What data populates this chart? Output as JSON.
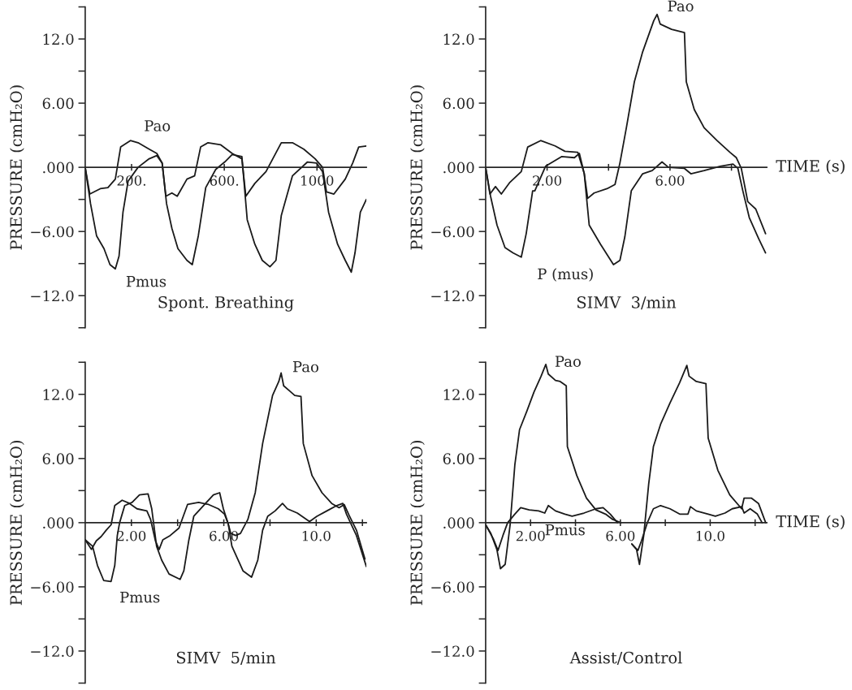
{
  "chart_data": [
    {
      "type": "line",
      "title": "Spont. Breathing",
      "ylabel": "PRESSURE (cmH₂O)",
      "xlim": [
        0,
        1213
      ],
      "ylim": [
        -15,
        15
      ],
      "xticks": [
        {
          "value": 200,
          "label": "200."
        },
        {
          "value": 600,
          "label": "600."
        },
        {
          "value": 1000,
          "label": "1000"
        }
      ],
      "yticks": [
        {
          "value": -15,
          "label": null
        },
        {
          "value": -12,
          "label": "−12.0"
        },
        {
          "value": -9,
          "label": null
        },
        {
          "value": -6,
          "label": "−6.00"
        },
        {
          "value": -3,
          "label": null
        },
        {
          "value": 0,
          "label": ".000"
        },
        {
          "value": 3,
          "label": null
        },
        {
          "value": 6,
          "label": "6.00"
        },
        {
          "value": 9,
          "label": null
        },
        {
          "value": 12,
          "label": "12.0"
        },
        {
          "value": 15,
          "label": null
        }
      ],
      "series": [
        {
          "name": "Pao",
          "color": "#1a1a1a",
          "x": [
            0,
            20,
            65,
            98,
            130,
            153,
            195,
            228,
            276,
            309,
            332,
            348,
            374,
            397,
            439,
            472,
            498,
            530,
            585,
            634,
            676,
            693,
            732,
            780,
            846,
            894,
            943,
            992,
            1024,
            1041,
            1073,
            1122,
            1154,
            1180,
            1213
          ],
          "values": [
            0,
            -2.5,
            -2,
            -1.9,
            -1.1,
            1.9,
            2.5,
            2.3,
            1.7,
            1.3,
            0.4,
            -2.7,
            -2.4,
            -2.7,
            -1.1,
            -0.8,
            1.9,
            2.3,
            2.1,
            1.3,
            0.8,
            -2.7,
            -1.5,
            -0.4,
            2.3,
            2.3,
            1.7,
            0.8,
            0,
            -2.3,
            -2.5,
            -1.1,
            0.4,
            1.9,
            2.0
          ]
        },
        {
          "name": "Pmus",
          "color": "#1a1a1a",
          "x": [
            0,
            23,
            49,
            81,
            107,
            130,
            146,
            163,
            185,
            228,
            276,
            309,
            332,
            351,
            374,
            400,
            439,
            462,
            488,
            520,
            563,
            602,
            634,
            676,
            699,
            732,
            764,
            797,
            823,
            846,
            894,
            959,
            998,
            1024,
            1050,
            1089,
            1122,
            1148,
            1164,
            1187,
            1213
          ],
          "values": [
            0,
            -3.4,
            -6.4,
            -7.6,
            -9.1,
            -9.5,
            -8.3,
            -4.2,
            -1.3,
            0,
            0.8,
            1.1,
            0.4,
            -3.4,
            -5.7,
            -7.6,
            -8.7,
            -9.1,
            -6.4,
            -1.9,
            -0.2,
            0.5,
            1.2,
            1,
            -4.9,
            -7.2,
            -8.7,
            -9.3,
            -8.7,
            -4.5,
            -0.8,
            0.5,
            0.4,
            -0.4,
            -4.2,
            -7.2,
            -8.7,
            -9.8,
            -8.0,
            -4.2,
            -3.0
          ]
        }
      ]
    },
    {
      "type": "line",
      "title": "SIMV  3/min",
      "ylabel": "PRESSURE (cmH₂O)",
      "xlabel": "TIME (s)",
      "xlim": [
        0,
        9.15
      ],
      "ylim": [
        -15,
        15
      ],
      "xticks": [
        {
          "value": 2,
          "label": "2.00"
        },
        {
          "value": 4,
          "label": null
        },
        {
          "value": 6,
          "label": "6.00"
        },
        {
          "value": 8,
          "label": null
        }
      ],
      "yticks": [
        {
          "value": -15,
          "label": null
        },
        {
          "value": -12,
          "label": "−12.0"
        },
        {
          "value": -9,
          "label": null
        },
        {
          "value": -6,
          "label": "−6.00"
        },
        {
          "value": -3,
          "label": null
        },
        {
          "value": 0,
          "label": ".000"
        },
        {
          "value": 3,
          "label": null
        },
        {
          "value": 6,
          "label": "6.00"
        },
        {
          "value": 9,
          "label": null
        },
        {
          "value": 12,
          "label": "12.0"
        },
        {
          "value": 15,
          "label": null
        }
      ],
      "series": [
        {
          "name": "Pao",
          "color": "#1a1a1a",
          "x": [
            0,
            0.14,
            0.32,
            0.51,
            0.79,
            1.16,
            1.37,
            1.79,
            2.26,
            2.58,
            3.0,
            3.21,
            3.32,
            3.53,
            3.95,
            4.21,
            4.37,
            4.58,
            4.84,
            5.11,
            5.47,
            5.58,
            5.68,
            6.05,
            6.47,
            6.53,
            6.79,
            7.11,
            7.53,
            7.95,
            8.16,
            8.32,
            8.53,
            8.79,
            9.11
          ],
          "values": [
            0,
            -2.5,
            -1.8,
            -2.5,
            -1.4,
            -0.4,
            1.9,
            2.5,
            2.0,
            1.5,
            1.4,
            -0.6,
            -2.9,
            -2.4,
            -2.0,
            -1.6,
            0.4,
            3.7,
            8.0,
            10.8,
            13.7,
            14.3,
            13.4,
            12.9,
            12.6,
            8.0,
            5.4,
            3.7,
            2.5,
            1.4,
            0.9,
            -0.1,
            -3.2,
            -3.9,
            -6.2
          ]
        },
        {
          "name": "P (mus)",
          "color": "#1a1a1a",
          "x": [
            0,
            0.16,
            0.37,
            0.63,
            0.89,
            1.16,
            1.32,
            1.53,
            1.6,
            1.95,
            2.47,
            2.89,
            3.05,
            3.21,
            3.37,
            3.74,
            4.16,
            4.37,
            4.53,
            4.74,
            5.11,
            5.42,
            5.74,
            5.95,
            6.47,
            6.68,
            7.11,
            7.63,
            8.05,
            8.21,
            8.37,
            8.58,
            8.89,
            9.11
          ],
          "values": [
            0,
            -2.7,
            -5.4,
            -7.5,
            -8.0,
            -8.4,
            -6.2,
            -2.2,
            -2.2,
            0.1,
            1.0,
            0.9,
            1.3,
            -0.6,
            -5.4,
            -7.2,
            -9.1,
            -8.7,
            -6.5,
            -2.2,
            -0.6,
            -0.3,
            0.5,
            0,
            -0.1,
            -0.6,
            -0.3,
            0.1,
            0.3,
            -0.1,
            -2.2,
            -4.7,
            -6.7,
            -8.0
          ]
        }
      ]
    },
    {
      "type": "line",
      "title": "SIMV  5/min",
      "ylabel": "PRESSURE (cmH₂O)",
      "xlim": [
        0,
        12.17
      ],
      "ylim": [
        -15,
        15
      ],
      "xticks": [
        {
          "value": 2,
          "label": "2.00"
        },
        {
          "value": 4,
          "label": null
        },
        {
          "value": 6,
          "label": "6.00"
        },
        {
          "value": 8,
          "label": null
        },
        {
          "value": 10,
          "label": "10.0"
        },
        {
          "value": 12,
          "label": null
        }
      ],
      "yticks": [
        {
          "value": -15,
          "label": null
        },
        {
          "value": -12,
          "label": "−12.0"
        },
        {
          "value": -9,
          "label": null
        },
        {
          "value": -6,
          "label": "−6.00"
        },
        {
          "value": -3,
          "label": null
        },
        {
          "value": 0,
          "label": ".000"
        },
        {
          "value": 3,
          "label": null
        },
        {
          "value": 6,
          "label": "6.00"
        },
        {
          "value": 9,
          "label": null
        },
        {
          "value": 12,
          "label": "12.0"
        },
        {
          "value": 15,
          "label": null
        }
      ],
      "series": [
        {
          "name": "Pao",
          "color": "#1a1a1a",
          "x": [
            0,
            0.27,
            0.48,
            0.69,
            0.91,
            1.12,
            1.28,
            1.6,
            1.92,
            2.24,
            2.67,
            2.83,
            3.04,
            3.2,
            3.36,
            3.68,
            4.06,
            4.43,
            4.91,
            5.34,
            5.76,
            6.03,
            6.19,
            6.3,
            6.51,
            6.72,
            7.04,
            7.36,
            7.68,
            8.11,
            8.38,
            8.48,
            8.59,
            8.86,
            9.07,
            9.34,
            9.44,
            9.82,
            10.25,
            10.67,
            10.99,
            11.21,
            11.42,
            11.74,
            12.11
          ],
          "values": [
            -1.6,
            -2.5,
            -1.7,
            -1.3,
            -0.7,
            -0.2,
            1.6,
            2.1,
            1.8,
            1.3,
            1.1,
            0.3,
            -1.7,
            -2.5,
            -1.6,
            -1.2,
            -0.5,
            1.7,
            1.9,
            1.7,
            1.3,
            0.8,
            -0.1,
            -1.0,
            -1.2,
            -1.0,
            0.3,
            2.8,
            7.4,
            11.9,
            13.2,
            14.0,
            12.8,
            12.3,
            11.9,
            11.8,
            7.4,
            4.4,
            2.8,
            1.8,
            1.4,
            1.7,
            0.7,
            -0.7,
            -3.4
          ]
        },
        {
          "name": "Pmus",
          "color": "#1a1a1a",
          "x": [
            0,
            0.32,
            0.53,
            0.8,
            1.12,
            1.28,
            1.39,
            1.49,
            1.71,
            2.03,
            2.35,
            2.72,
            2.88,
            3.09,
            3.31,
            3.63,
            4.11,
            4.27,
            4.48,
            4.7,
            5.12,
            5.55,
            5.82,
            5.98,
            6.19,
            6.35,
            6.62,
            6.83,
            7.2,
            7.47,
            7.68,
            7.9,
            8.22,
            8.54,
            8.75,
            9.18,
            9.71,
            10.03,
            10.46,
            10.89,
            11.15,
            11.31,
            11.74,
            12.17
          ],
          "values": [
            -1.6,
            -2.2,
            -4.0,
            -5.4,
            -5.5,
            -4.0,
            -1.2,
            0,
            1.6,
            1.9,
            2.6,
            2.7,
            1.3,
            -2.2,
            -3.5,
            -4.8,
            -5.3,
            -4.5,
            -1.7,
            0.6,
            1.6,
            2.6,
            2.8,
            1.3,
            -0.1,
            -2.2,
            -3.5,
            -4.5,
            -5.1,
            -3.5,
            -0.7,
            0.6,
            1.1,
            1.8,
            1.3,
            0.9,
            0.1,
            0.6,
            1.1,
            1.6,
            1.8,
            0.8,
            -1.2,
            -4.1
          ]
        }
      ]
    },
    {
      "type": "line",
      "title": "Assist/Control",
      "ylabel": "PRESSURE (cmH₂O)",
      "xlabel": "TIME (s)",
      "xlim": [
        0,
        12.52
      ],
      "ylim": [
        -15,
        15
      ],
      "xticks": [
        {
          "value": 2,
          "label": "2.00"
        },
        {
          "value": 4,
          "label": null
        },
        {
          "value": 6,
          "label": "6.00"
        },
        {
          "value": 8,
          "label": null
        },
        {
          "value": 10,
          "label": "10.0"
        },
        {
          "value": 12,
          "label": null
        }
      ],
      "yticks": [
        {
          "value": -15,
          "label": null
        },
        {
          "value": -12,
          "label": "−12.0"
        },
        {
          "value": -9,
          "label": null
        },
        {
          "value": -6,
          "label": "−6.00"
        },
        {
          "value": -3,
          "label": null
        },
        {
          "value": 0,
          "label": ".000"
        },
        {
          "value": 3,
          "label": null
        },
        {
          "value": 6,
          "label": "6.00"
        },
        {
          "value": 9,
          "label": null
        },
        {
          "value": 12,
          "label": "12.0"
        },
        {
          "value": 15,
          "label": null
        }
      ],
      "series": [
        {
          "name": "Pao",
          "color": "#1a1a1a",
          "x": [
            0,
            0.23,
            0.5,
            0.66,
            0.87,
            1.09,
            1.3,
            1.51,
            1.83,
            2.15,
            2.47,
            2.68,
            2.79,
            3.11,
            3.32,
            3.59,
            3.64,
            4.06,
            4.49,
            4.91,
            5.34,
            5.66,
            6.03,
            6.2,
            6.51,
            6.72,
            6.85,
            7.04,
            7.26,
            7.47,
            7.79,
            8.21,
            8.64,
            8.96,
            9.06,
            9.38,
            9.81,
            9.91,
            10.34,
            10.87,
            11.4,
            11.51,
            11.83,
            12.15,
            12.47
          ],
          "values": [
            -0.2,
            -1.0,
            -2.5,
            -4.3,
            -3.9,
            -0.2,
            5.4,
            8.7,
            10.4,
            12.2,
            13.7,
            14.8,
            13.9,
            13.3,
            13.2,
            12.8,
            7.1,
            4.4,
            2.3,
            1.2,
            0.8,
            0.3,
            0,
            null,
            -2.0,
            -2.5,
            -3.9,
            -1.2,
            3.6,
            7.1,
            9.2,
            11.2,
            13.1,
            14.7,
            13.7,
            13.2,
            13.0,
            7.9,
            4.9,
            2.6,
            1.3,
            2.3,
            2.3,
            1.8,
            0
          ]
        },
        {
          "name": "Pmus",
          "color": "#1a1a1a",
          "x": [
            0,
            0.34,
            0.55,
            0.77,
            0.98,
            1.3,
            1.56,
            1.94,
            2.36,
            2.63,
            2.79,
            3.11,
            3.53,
            3.85,
            4.38,
            4.91,
            5.23,
            5.55,
            5.87,
            6.2,
            6.51,
            6.78,
            6.94,
            7.2,
            7.47,
            7.79,
            8.21,
            8.64,
            9.01,
            9.12,
            9.38,
            9.91,
            10.23,
            10.66,
            10.98,
            11.4,
            11.51,
            11.78,
            12.1,
            12.31
          ],
          "values": [
            -0.2,
            -1.5,
            -2.6,
            -1.2,
            0,
            0.8,
            1.4,
            1.2,
            1.1,
            0.9,
            1.6,
            1.1,
            0.8,
            0.6,
            0.9,
            1.3,
            1.4,
            0.8,
            0,
            null,
            -2.0,
            -2.6,
            -1.7,
            0,
            1.3,
            1.6,
            1.3,
            0.8,
            0.8,
            1.5,
            1.1,
            0.8,
            0.6,
            0.9,
            1.3,
            1.5,
            0.9,
            1.3,
            0.8,
            0
          ]
        }
      ]
    }
  ]
}
